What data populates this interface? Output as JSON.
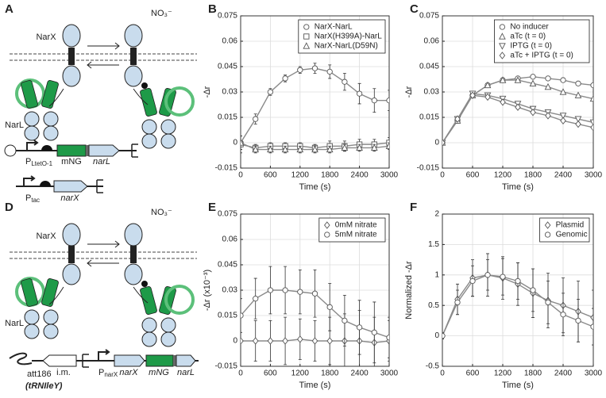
{
  "diagrams": [
    {
      "label": "A",
      "sensor": "NarX",
      "ligand": "NO₃⁻",
      "regulator": "NarL",
      "genes": [
        "mNG",
        "narL",
        "narX"
      ],
      "promoters": [
        {
          "name": "P",
          "subscript": "LtetO-1"
        },
        {
          "name": "P",
          "subscript": "tac"
        }
      ]
    },
    {
      "label": "D",
      "sensor": "NarX",
      "ligand": "NO₃⁻",
      "regulator": "NarL",
      "genes": [
        "narX",
        "mNG",
        "narL"
      ],
      "site": "att186",
      "site_note": "(tRNIleY)",
      "insert": "i.m.",
      "promoters": [
        {
          "name": "P",
          "subscript": "narX"
        }
      ]
    }
  ],
  "chart_data": [
    {
      "type": "line",
      "label": "B",
      "xlabel": "Time (s)",
      "ylabel": "-Δr",
      "x": [
        0,
        300,
        600,
        900,
        1200,
        1500,
        1800,
        2100,
        2400,
        2700,
        3000
      ],
      "xlim": [
        0,
        3000
      ],
      "xticks": [
        0,
        600,
        1200,
        1800,
        2400,
        3000
      ],
      "ylim": [
        -0.015,
        0.075
      ],
      "yticks": [
        -0.015,
        0,
        0.015,
        0.03,
        0.045,
        0.06,
        0.075
      ],
      "grid": true,
      "legend": "upper right",
      "series": [
        {
          "name": "NarX-NarL",
          "marker": "circle",
          "color": "#8a8a8a",
          "values": [
            0,
            0.014,
            0.03,
            0.038,
            0.043,
            0.044,
            0.042,
            0.036,
            0.029,
            0.025,
            0.025
          ],
          "errors": [
            0.004,
            0.003,
            0.002,
            0.002,
            0.002,
            0.003,
            0.004,
            0.005,
            0.006,
            0.007,
            0.006
          ]
        },
        {
          "name": "NarX(H399A)-NarL",
          "marker": "square",
          "color": "#8a8a8a",
          "values": [
            -0.001,
            -0.003,
            -0.002,
            -0.002,
            -0.002,
            -0.003,
            -0.002,
            -0.002,
            -0.001,
            -0.001,
            0
          ],
          "errors": [
            0.005,
            0.002,
            0.002,
            0.002,
            0.002,
            0.002,
            0.003,
            0.003,
            0.003,
            0.003,
            0.003
          ]
        },
        {
          "name": "NarX-NarL(D59N)",
          "marker": "triangle-up",
          "color": "#8a8a8a",
          "values": [
            0,
            -0.004,
            -0.004,
            -0.004,
            -0.004,
            -0.004,
            -0.004,
            -0.003,
            -0.003,
            -0.003,
            -0.002
          ],
          "errors": [
            0.004,
            0.002,
            0.002,
            0.002,
            0.002,
            0.002,
            0.002,
            0.002,
            0.002,
            0.002,
            0.002
          ]
        }
      ]
    },
    {
      "type": "line",
      "label": "C",
      "xlabel": "Time (s)",
      "ylabel": "-Δr",
      "x": [
        0,
        300,
        600,
        900,
        1200,
        1500,
        1800,
        2100,
        2400,
        2700,
        3000
      ],
      "xlim": [
        0,
        3000
      ],
      "xticks": [
        0,
        600,
        1200,
        1800,
        2400,
        3000
      ],
      "ylim": [
        -0.015,
        0.075
      ],
      "yticks": [
        -0.015,
        0,
        0.015,
        0.03,
        0.045,
        0.06,
        0.075
      ],
      "grid": true,
      "legend": "upper right",
      "series": [
        {
          "name": "No inducer",
          "marker": "circle",
          "color": "#8a8a8a",
          "values": [
            0,
            0.013,
            0.028,
            0.034,
            0.037,
            0.038,
            0.039,
            0.038,
            0.037,
            0.035,
            0.034
          ]
        },
        {
          "name": "aTc (t = 0)",
          "marker": "triangle-up",
          "color": "#8a8a8a",
          "values": [
            0,
            0.013,
            0.028,
            0.034,
            0.037,
            0.037,
            0.035,
            0.033,
            0.03,
            0.028,
            0.026
          ]
        },
        {
          "name": "IPTG (t = 0)",
          "marker": "triangle-down",
          "color": "#8a8a8a",
          "values": [
            0,
            0.014,
            0.029,
            0.028,
            0.026,
            0.023,
            0.02,
            0.018,
            0.016,
            0.014,
            0.012
          ]
        },
        {
          "name": "aTc + IPTG (t = 0)",
          "marker": "diamond",
          "color": "#8a8a8a",
          "values": [
            0,
            0.014,
            0.028,
            0.027,
            0.024,
            0.021,
            0.018,
            0.016,
            0.013,
            0.011,
            0.009
          ]
        }
      ]
    },
    {
      "type": "line",
      "label": "E",
      "xlabel": "Time (s)",
      "ylabel": "-Δr (x10⁻³)",
      "x": [
        0,
        300,
        600,
        900,
        1200,
        1500,
        1800,
        2100,
        2400,
        2700,
        3000
      ],
      "xlim": [
        0,
        3000
      ],
      "xticks": [
        0,
        600,
        1200,
        1800,
        2400,
        3000
      ],
      "ylim": [
        -0.015,
        0.075
      ],
      "yticks": [
        -0.015,
        0,
        0.015,
        0.03,
        0.045,
        0.06,
        0.075
      ],
      "grid": true,
      "legend": "upper right",
      "series": [
        {
          "name": "0mM nitrate",
          "marker": "diamond",
          "color": "#8a8a8a",
          "values": [
            0,
            0,
            0,
            0,
            0.001,
            0,
            0,
            0,
            0,
            -0.001,
            0
          ],
          "errors": [
            0.015,
            0.012,
            0.012,
            0.014,
            0.012,
            0.012,
            0.014,
            0.016,
            0.018,
            0.015,
            0.012
          ]
        },
        {
          "name": "5mM nitrate",
          "marker": "circle",
          "color": "#8a8a8a",
          "values": [
            0.015,
            0.025,
            0.03,
            0.03,
            0.029,
            0.028,
            0.02,
            0.012,
            0.008,
            0.005,
            0.002
          ],
          "errors": [
            0.01,
            0.012,
            0.014,
            0.014,
            0.013,
            0.014,
            0.014,
            0.015,
            0.016,
            0.018,
            0.012
          ]
        }
      ]
    },
    {
      "type": "line",
      "label": "F",
      "xlabel": "Time (s)",
      "ylabel": "Normalized -Δr",
      "x": [
        0,
        300,
        600,
        900,
        1200,
        1500,
        1800,
        2100,
        2400,
        2700,
        3000
      ],
      "xlim": [
        0,
        3000
      ],
      "xticks": [
        0,
        600,
        1200,
        1800,
        2400,
        3000
      ],
      "ylim": [
        -0.5,
        2
      ],
      "yticks": [
        -0.5,
        0,
        0.5,
        1,
        1.5,
        2
      ],
      "grid": true,
      "legend": "upper right",
      "series": [
        {
          "name": "Plasmid",
          "marker": "diamond",
          "color": "#8a8a8a",
          "values": [
            0,
            0.6,
            0.95,
            1,
            0.95,
            0.85,
            0.7,
            0.58,
            0.5,
            0.4,
            0.3
          ],
          "errors": [
            0.05,
            0.25,
            0.3,
            0.35,
            0.35,
            0.35,
            0.4,
            0.45,
            0.45,
            0.5,
            0.45
          ]
        },
        {
          "name": "Genomic",
          "marker": "circle",
          "color": "#8a8a8a",
          "values": [
            0,
            0.55,
            0.9,
            1,
            0.97,
            0.9,
            0.75,
            0.55,
            0.35,
            0.25,
            0.15
          ],
          "errors": [
            0.05,
            0.2,
            0.25,
            0.25,
            0.3,
            0.3,
            0.35,
            0.35,
            0.35,
            0.35,
            0.3
          ]
        }
      ]
    }
  ]
}
